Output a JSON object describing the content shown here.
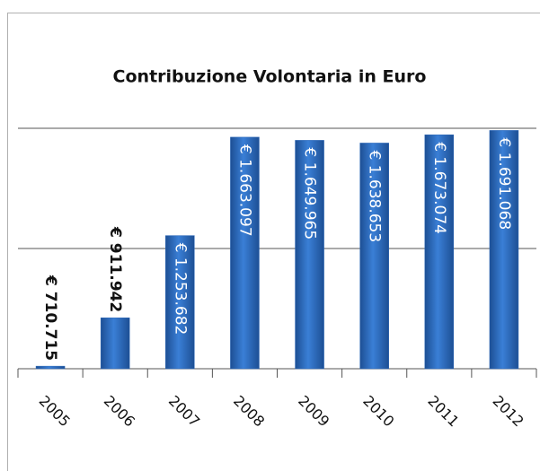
{
  "chart_data": {
    "type": "bar",
    "title": "Contribuzione Volontaria in Euro",
    "categories": [
      "2005",
      "2006",
      "2007",
      "2008",
      "2009",
      "2010",
      "2011",
      "2012"
    ],
    "values": [
      710715,
      911942,
      1253682,
      1663097,
      1649965,
      1638653,
      1673074,
      1691068
    ],
    "value_labels": [
      "€ 710.715",
      "€ 911.942",
      "€ 1.253.682",
      "€ 1.663.097",
      "€ 1.649.965",
      "€ 1.638.653",
      "€ 1.673.074",
      "€ 1.691.068"
    ],
    "color": "#2a66b8",
    "ylim": [
      700000,
      1700000
    ],
    "yticks": [
      700000,
      1200000,
      1700000
    ],
    "grid": true
  }
}
